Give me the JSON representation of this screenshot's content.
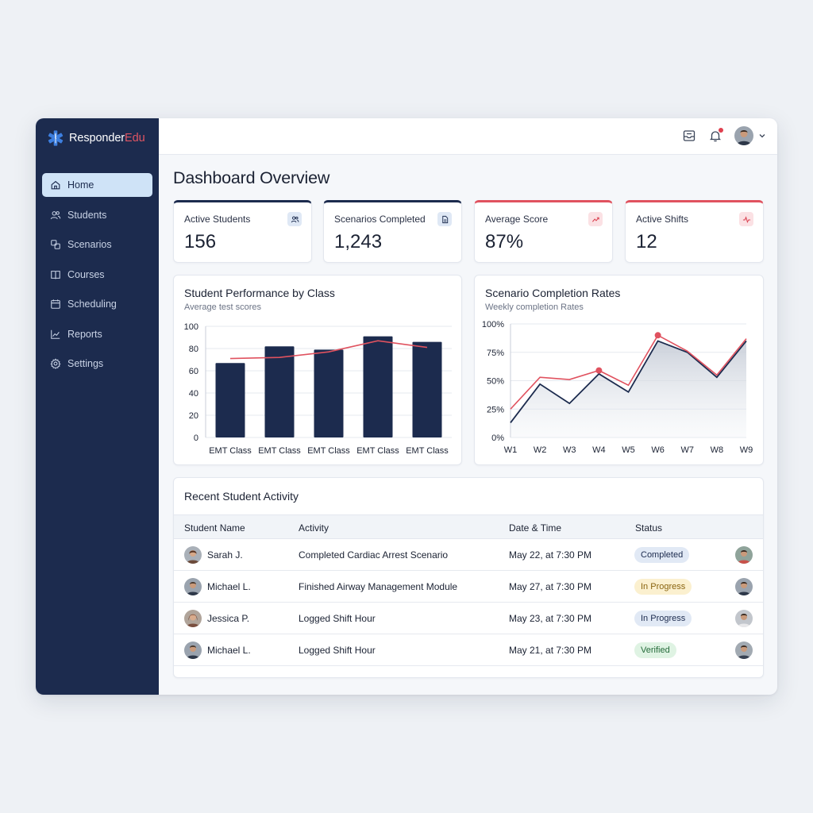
{
  "app": {
    "brand_main": "Responder",
    "brand_accent": "Edu",
    "logo_icon": "star-of-life-icon"
  },
  "sidebar": {
    "items": [
      {
        "label": "Home",
        "icon": "home-icon",
        "active": true
      },
      {
        "label": "Students",
        "icon": "users-icon"
      },
      {
        "label": "Scenarios",
        "icon": "scenarios-icon"
      },
      {
        "label": "Courses",
        "icon": "book-icon"
      },
      {
        "label": "Scheduling",
        "icon": "calendar-icon"
      },
      {
        "label": "Reports",
        "icon": "chart-line-icon"
      },
      {
        "label": "Settings",
        "icon": "gear-icon"
      }
    ]
  },
  "topbar": {
    "icons": [
      "inbox-icon",
      "bell-icon",
      "user-avatar",
      "chevron-down-icon"
    ]
  },
  "page": {
    "title": "Dashboard Overview"
  },
  "kpis": [
    {
      "label": "Active Students",
      "value": "156",
      "icon": "users-icon"
    },
    {
      "label": "Scenarios Completed",
      "value": "1,243",
      "icon": "document-icon"
    },
    {
      "label": "Average Score",
      "value": "87%",
      "icon": "trend-up-icon"
    },
    {
      "label": "Active Shifts",
      "value": "12",
      "icon": "pulse-icon"
    }
  ],
  "colors": {
    "navy": "#1c2b4e",
    "accent_red": "#e0525f",
    "background": "#eef1f5"
  },
  "charts": {
    "performance": {
      "title": "Student Performance by Class",
      "subtitle": "Average test scores"
    },
    "completion": {
      "title": "Scenario Completion Rates",
      "subtitle": "Weekly completion Rates"
    }
  },
  "chart_data": [
    {
      "type": "bar",
      "title": "Student Performance by Class",
      "subtitle": "Average test scores",
      "categories": [
        "EMT Class",
        "EMT Class",
        "EMT Class",
        "EMT Class",
        "EMT Class"
      ],
      "series": [
        {
          "type": "bar",
          "values": [
            67,
            82,
            79,
            91,
            86
          ],
          "color": "#1c2b4e"
        },
        {
          "type": "line",
          "values": [
            71,
            72,
            77,
            87,
            81
          ],
          "color": "#e0525f"
        }
      ],
      "y_ticks": [
        "0",
        "20",
        "40",
        "60",
        "80",
        "100"
      ],
      "ylim": [
        0,
        100
      ],
      "grid": true
    },
    {
      "type": "line",
      "title": "Scenario Completion Rates",
      "subtitle": "Weekly completion Rates",
      "categories": [
        "W1",
        "W2",
        "W3",
        "W4",
        "W5",
        "W6",
        "W7",
        "W8",
        "W9"
      ],
      "series": [
        {
          "type": "area",
          "values": [
            13,
            47,
            30,
            56,
            40,
            85,
            75,
            53,
            85
          ],
          "color": "#1c2b4e"
        },
        {
          "type": "line",
          "values": [
            25,
            53,
            51,
            59,
            46,
            90,
            76,
            55,
            87
          ],
          "color": "#e0525f",
          "markers_at": [
            3,
            5
          ]
        }
      ],
      "y_ticks": [
        "0%",
        "25%",
        "50%",
        "75%",
        "100%"
      ],
      "ylim": [
        0,
        100
      ],
      "grid": true
    }
  ],
  "activity": {
    "title": "Recent Student Activity",
    "columns": [
      "Student Name",
      "Activity",
      "Date & Time",
      "Status"
    ],
    "rows": [
      {
        "name": "Sarah J.",
        "activity": "Completed Cardiac Arrest Scenario",
        "datetime": "May 22, at 7:30 PM",
        "status": "Completed",
        "status_style": "completed"
      },
      {
        "name": "Michael L.",
        "activity": "Finished Airway Management Module",
        "datetime": "May 27, at 7:30 PM",
        "status": "In Progress",
        "status_style": "progress-yellow"
      },
      {
        "name": "Jessica P.",
        "activity": "Logged Shift Hour",
        "datetime": "May 23, at 7:30 PM",
        "status": "In Progress",
        "status_style": "progress-blue"
      },
      {
        "name": "Michael L.",
        "activity": "Logged Shift Hour",
        "datetime": "May 21, at 7:30 PM",
        "status": "Verified",
        "status_style": "verified"
      }
    ]
  }
}
